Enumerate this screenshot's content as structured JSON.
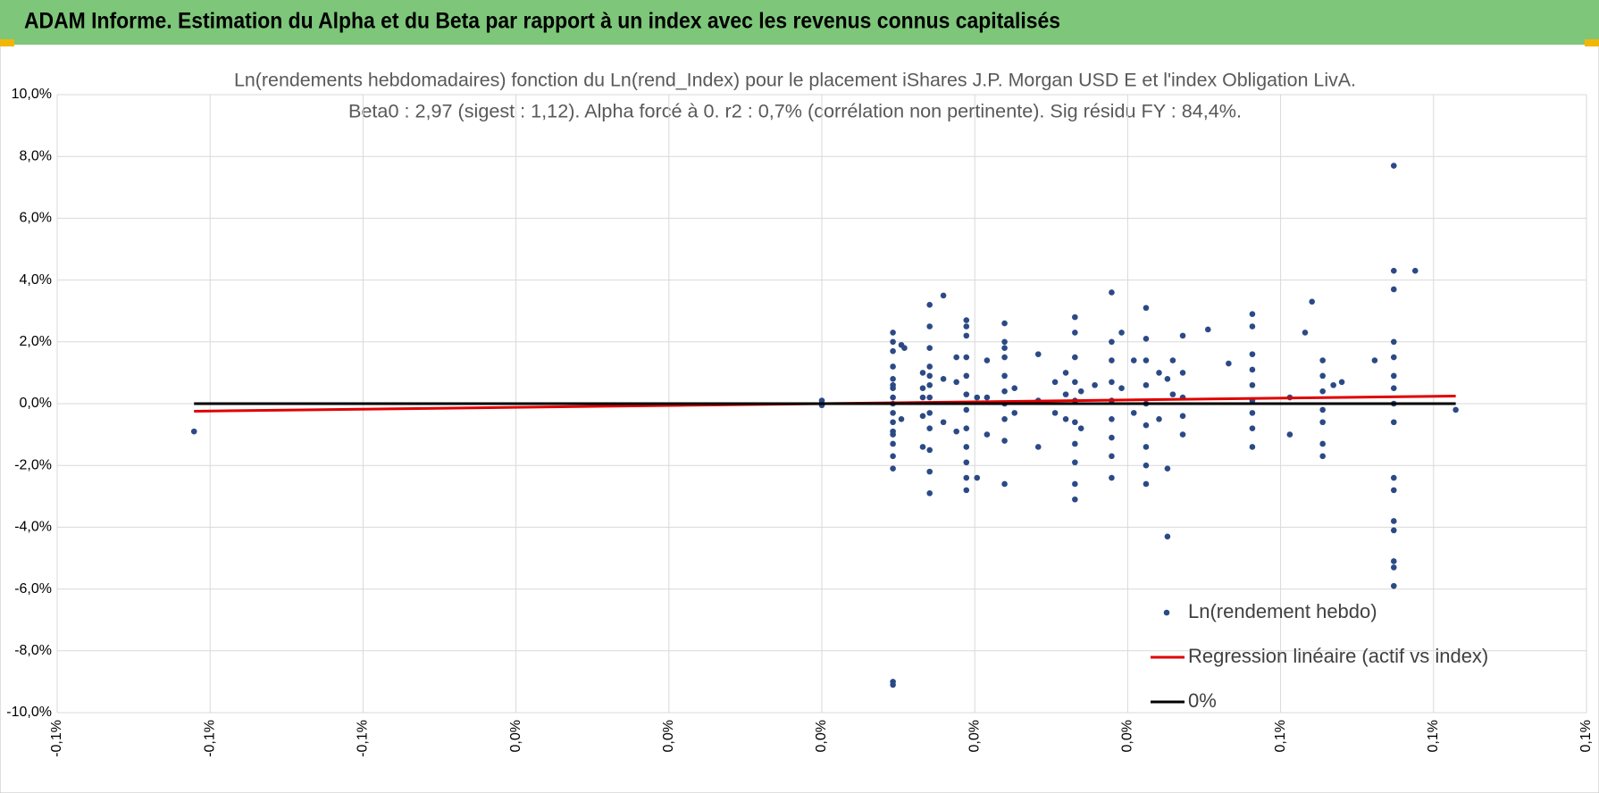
{
  "header": {
    "title": "ADAM Informe. Estimation du Alpha et du Beta par rapport à un index avec les revenus connus capitalisés"
  },
  "chart_data": {
    "type": "scatter",
    "title": "Ln(rendements hebdomadaires) fonction du Ln(rend_Index) pour le placement iShares J.P. Morgan USD E et l'index Obligation LivA.",
    "subtitle": "Beta0 : 2,97 (sigest : 1,12). Alpha forcé à 0. r2 : 0,7% (corrélation non pertinente). Sig résidu FY : 84,4%.",
    "xlim": [
      -0.1,
      0.1
    ],
    "xticks": [
      {
        "value": -0.1,
        "label": "-0,1%"
      },
      {
        "value": -0.08,
        "label": "-0,1%"
      },
      {
        "value": -0.06,
        "label": "-0,1%"
      },
      {
        "value": -0.04,
        "label": "0,0%"
      },
      {
        "value": -0.02,
        "label": "0,0%"
      },
      {
        "value": 0,
        "label": "0,0%"
      },
      {
        "value": 0.02,
        "label": "0,0%"
      },
      {
        "value": 0.04,
        "label": "0,0%"
      },
      {
        "value": 0.06,
        "label": "0,1%"
      },
      {
        "value": 0.08,
        "label": "0,1%"
      },
      {
        "value": 0.1,
        "label": "0,1%"
      }
    ],
    "ylim": [
      -10,
      10
    ],
    "yticks": [
      {
        "value": -10,
        "label": "-10,0%"
      },
      {
        "value": -8,
        "label": "-8,0%"
      },
      {
        "value": -6,
        "label": "-6,0%"
      },
      {
        "value": -4,
        "label": "-4,0%"
      },
      {
        "value": -2,
        "label": "-2,0%"
      },
      {
        "value": 0,
        "label": "0,0%"
      },
      {
        "value": 2,
        "label": "2,0%"
      },
      {
        "value": 4,
        "label": "4,0%"
      },
      {
        "value": 6,
        "label": "6,0%"
      },
      {
        "value": 8,
        "label": "8,0%"
      },
      {
        "value": 10,
        "label": "10,0%"
      }
    ],
    "grid": true,
    "legend": "bottom-right",
    "series": [
      {
        "name": "Ln(rendement hebdo)",
        "color": "#2b4a85",
        "mode": "markers",
        "x": [
          0,
          0,
          0,
          -0.0821,
          0.0093,
          0.0093,
          0.0093,
          0.0093,
          0.0093,
          0.0093,
          0.0093,
          0.0093,
          0.0093,
          0.0093,
          0.0093,
          0.0093,
          0.0093,
          0.0093,
          0.0093,
          0.0093,
          0.0093,
          0.0093,
          0.0104,
          0.0104,
          0.0108,
          0.0132,
          0.0132,
          0.0132,
          0.0132,
          0.0132,
          0.0141,
          0.0141,
          0.0141,
          0.0141,
          0.0141,
          0.0141,
          0.0141,
          0.0141,
          0.0141,
          0.0141,
          0.0141,
          0.0141,
          0.0159,
          0.0159,
          0.0159,
          0.0176,
          0.0176,
          0.0176,
          0.0189,
          0.0189,
          0.0189,
          0.0189,
          0.0189,
          0.0189,
          0.0189,
          0.0189,
          0.0189,
          0.0189,
          0.0189,
          0.0189,
          0.0203,
          0.0203,
          0.0216,
          0.0216,
          0.0216,
          0.0239,
          0.0239,
          0.0239,
          0.0239,
          0.0239,
          0.0239,
          0.0239,
          0.0239,
          0.0239,
          0.0239,
          0.0252,
          0.0252,
          0.0283,
          0.0283,
          0.0283,
          0.0305,
          0.0305,
          0.0319,
          0.0319,
          0.0319,
          0.0331,
          0.0331,
          0.0331,
          0.0331,
          0.0331,
          0.0331,
          0.0331,
          0.0331,
          0.0331,
          0.0331,
          0.0339,
          0.0339,
          0.0357,
          0.0379,
          0.0379,
          0.0379,
          0.0379,
          0.0379,
          0.0379,
          0.0379,
          0.0379,
          0.0379,
          0.0392,
          0.0392,
          0.0408,
          0.0408,
          0.0424,
          0.0424,
          0.0424,
          0.0424,
          0.0424,
          0.0424,
          0.0424,
          0.0424,
          0.0424,
          0.0441,
          0.0441,
          0.0452,
          0.0452,
          0.0452,
          0.0459,
          0.0459,
          0.0472,
          0.0472,
          0.0472,
          0.0472,
          0.0472,
          0.0505,
          0.0532,
          0.0563,
          0.0563,
          0.0563,
          0.0563,
          0.0563,
          0.0563,
          0.0563,
          0.0563,
          0.0563,
          0.0612,
          0.0612,
          0.0632,
          0.0641,
          0.0655,
          0.0655,
          0.0655,
          0.0655,
          0.0655,
          0.0655,
          0.0655,
          0.0669,
          0.068,
          0.0723,
          0.0748,
          0.0748,
          0.0748,
          0.0748,
          0.0748,
          0.0748,
          0.0748,
          0.0748,
          0.0748,
          0.0748,
          0.0748,
          0.0748,
          0.0748,
          0.0748,
          0.0748,
          0.0748,
          0.0776,
          0.0829
        ],
        "values": [
          0,
          0.1,
          -0.05,
          -0.9,
          2.3,
          2.0,
          1.7,
          1.2,
          0.8,
          0.5,
          0.2,
          0,
          -0.3,
          -0.6,
          -1.0,
          -1.3,
          -1.7,
          -2.1,
          0.6,
          -0.9,
          -9.0,
          -9.1,
          1.9,
          -0.5,
          1.8,
          1.0,
          0.5,
          -0.4,
          -1.4,
          0.2,
          3.2,
          2.5,
          1.8,
          1.2,
          0.6,
          0.2,
          -0.3,
          -0.8,
          -1.5,
          -2.2,
          -2.9,
          0.9,
          3.5,
          0.8,
          -0.6,
          1.5,
          -0.9,
          0.7,
          2.7,
          2.2,
          1.5,
          0.9,
          0.3,
          -0.2,
          -0.8,
          -1.4,
          -1.9,
          -2.4,
          -2.8,
          2.5,
          -2.4,
          0.2,
          1.4,
          0.2,
          -1.0,
          2.6,
          2.0,
          1.5,
          0.9,
          0.4,
          0,
          -0.5,
          -1.2,
          -2.6,
          1.8,
          -0.3,
          0.5,
          1.6,
          0.1,
          -1.4,
          0.7,
          -0.3,
          1.0,
          0.3,
          -0.5,
          2.8,
          2.3,
          1.5,
          0.7,
          0.1,
          -0.6,
          -1.3,
          -1.9,
          -2.6,
          -3.1,
          0.4,
          -0.8,
          0.6,
          3.6,
          2.0,
          1.4,
          0.7,
          0.1,
          -0.5,
          -1.1,
          -1.7,
          -2.4,
          2.3,
          0.5,
          1.4,
          -0.3,
          3.1,
          2.1,
          1.4,
          0.6,
          0,
          -0.7,
          -1.4,
          -2.0,
          -2.6,
          1.0,
          -0.5,
          0.8,
          -2.1,
          -4.3,
          1.4,
          0.3,
          2.2,
          1.0,
          0.2,
          -0.4,
          -1.0,
          2.4,
          1.3,
          2.9,
          2.5,
          1.6,
          1.1,
          0.6,
          0.1,
          -0.3,
          -0.8,
          -1.4,
          -1.0,
          0.2,
          2.3,
          3.3,
          1.4,
          0.9,
          0.4,
          -0.2,
          -0.6,
          -1.3,
          -1.7,
          0.6,
          0.7,
          1.4,
          7.7,
          4.3,
          3.7,
          2.0,
          1.5,
          0.9,
          0.5,
          0,
          -0.6,
          -2.4,
          -2.8,
          -3.8,
          -4.1,
          -5.1,
          -5.3,
          -5.9,
          4.3,
          -0.2
        ]
      },
      {
        "name": "Regression linéaire (actif vs index)",
        "color": "#e00000",
        "mode": "line",
        "x": [
          -0.0821,
          0.0829
        ],
        "values": [
          -0.244,
          0.246
        ]
      },
      {
        "name": "0%",
        "color": "#000000",
        "mode": "line",
        "x": [
          -0.0821,
          0.0829
        ],
        "values": [
          0,
          0
        ]
      }
    ]
  }
}
